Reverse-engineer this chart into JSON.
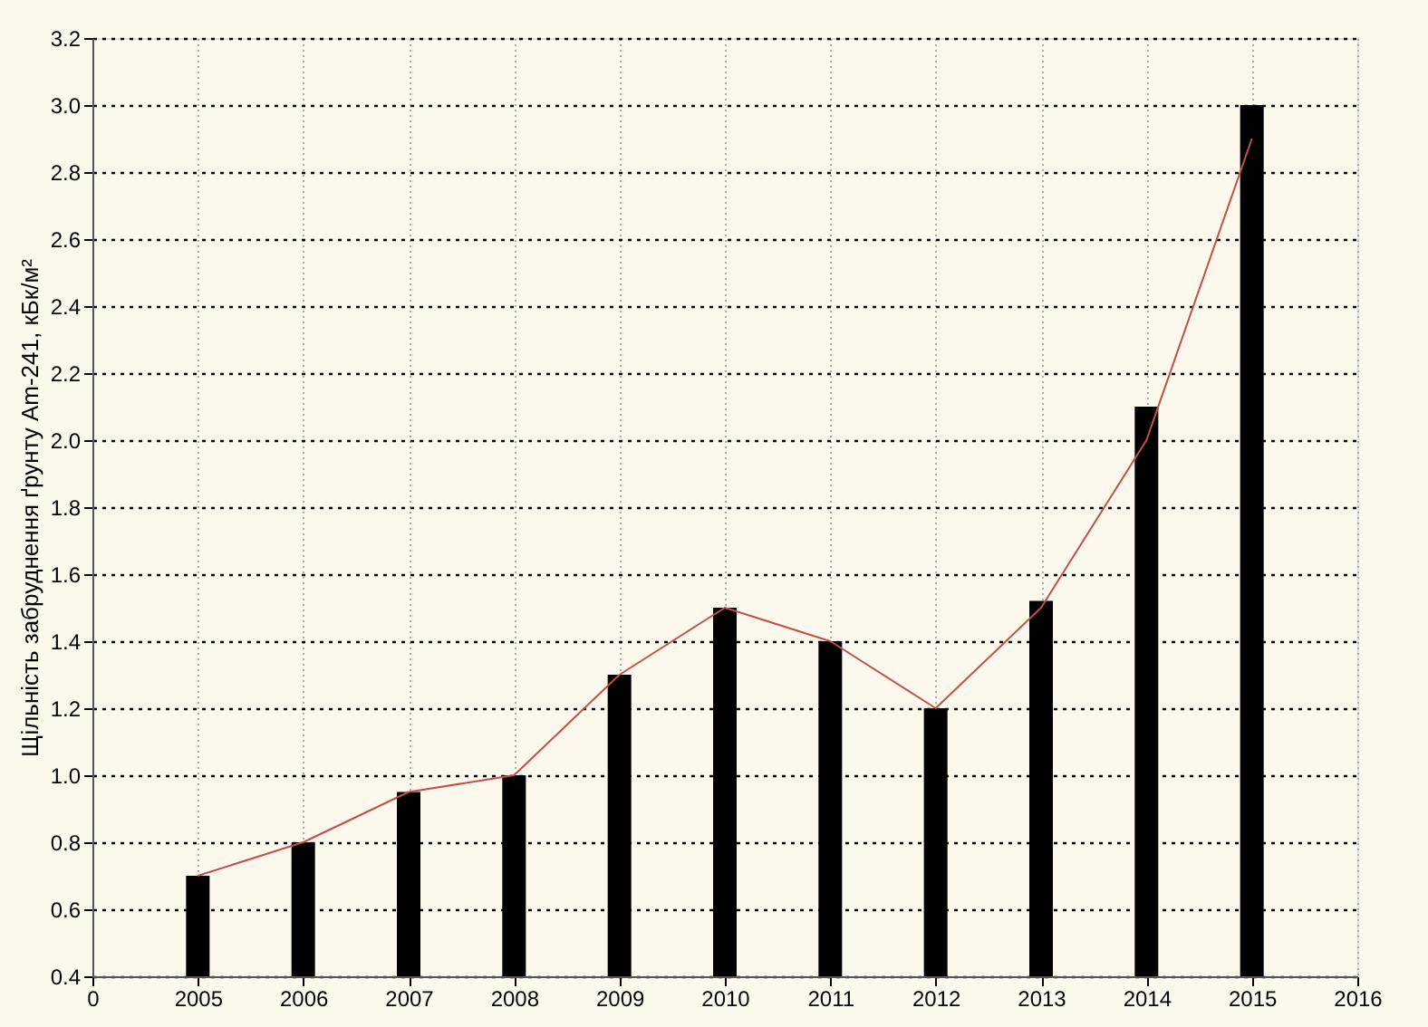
{
  "chart_data": {
    "type": "bar",
    "ylabel": "Щільність забруднення ґрунту Am-241, кБк/м²",
    "categories": [
      "0",
      "2005",
      "2006",
      "2007",
      "2008",
      "2009",
      "2010",
      "2011",
      "2012",
      "2013",
      "2014",
      "2015",
      "2016"
    ],
    "series": [
      {
        "color": "#000000",
        "values": [
          null,
          0.7,
          0.8,
          0.95,
          1.0,
          1.3,
          1.5,
          1.4,
          1.2,
          1.52,
          2.1,
          3.0,
          null
        ]
      },
      {
        "type": "line",
        "color": "#c0504d",
        "values": [
          null,
          0.7,
          0.8,
          0.95,
          1.0,
          1.3,
          1.5,
          1.4,
          1.2,
          1.5,
          2.0,
          2.9,
          null
        ]
      }
    ],
    "ylim": [
      0.4,
      3.2
    ],
    "yticks": [
      {
        "value": 0.4,
        "label": "0.4"
      },
      {
        "value": 0.6,
        "label": "0.6"
      },
      {
        "value": 0.8,
        "label": "0.8"
      },
      {
        "value": 1.0,
        "label": "1.0"
      },
      {
        "value": 1.2,
        "label": "1.2"
      },
      {
        "value": 1.4,
        "label": "1.4"
      },
      {
        "value": 1.6,
        "label": "1.6"
      },
      {
        "value": 1.8,
        "label": "1.8"
      },
      {
        "value": 2.0,
        "label": "2.0"
      },
      {
        "value": 2.2,
        "label": "2.2"
      },
      {
        "value": 2.4,
        "label": "2.4"
      },
      {
        "value": 2.6,
        "label": "2.6"
      },
      {
        "value": 2.8,
        "label": "2.8"
      },
      {
        "value": 3.0,
        "label": "3.0"
      },
      {
        "value": 3.2,
        "label": "3.2"
      }
    ],
    "grid": true,
    "legend": false
  }
}
